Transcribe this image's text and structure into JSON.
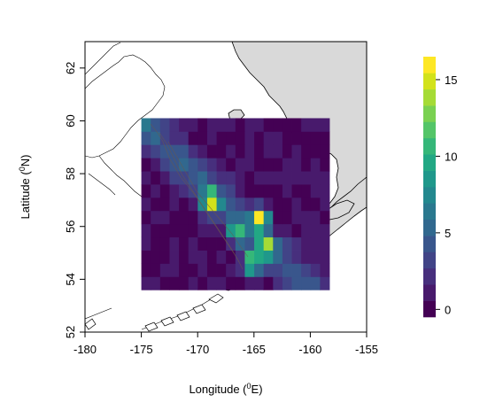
{
  "chart_data": {
    "type": "heatmap",
    "xlabel": "Longitude",
    "xlabel_sup": "0",
    "xlabel_unit": "E",
    "ylabel": "Latitude",
    "ylabel_sup": "0",
    "ylabel_unit": "N",
    "xlim": [
      -180,
      -155
    ],
    "ylim": [
      52,
      63
    ],
    "x_ticks": [
      -180,
      -175,
      -170,
      -165,
      -160,
      -155
    ],
    "x_tick_labels": [
      "-180",
      "-175",
      "-170",
      "-165",
      "-160",
      "-155"
    ],
    "y_ticks": [
      52,
      54,
      56,
      58,
      60,
      62
    ],
    "y_tick_labels": [
      "52",
      "54",
      "56",
      "58",
      "60",
      "62"
    ],
    "grid_extent": {
      "lon": [
        -175,
        -158.3
      ],
      "lat": [
        53.6,
        60.1
      ]
    },
    "grid_shape": {
      "rows": 13,
      "cols": 20
    },
    "colorbar": {
      "min": -0.5,
      "max": 16.5,
      "ticks": [
        0,
        5,
        10,
        15
      ],
      "tick_labels": [
        "0",
        "5",
        "10",
        "15"
      ],
      "colors": [
        "#440154",
        "#481a6c",
        "#472f7d",
        "#414487",
        "#39568c",
        "#31688e",
        "#2a788e",
        "#23888e",
        "#1f988b",
        "#22a884",
        "#35b779",
        "#54c568",
        "#7ad151",
        "#a5db36",
        "#d2e21b",
        "#fde725"
      ]
    },
    "land_color": "#d9d9d9",
    "hotspots": [
      {
        "lon": -164.4,
        "lat": 56.3,
        "value": 16
      },
      {
        "lon": -168.9,
        "lat": 57.0,
        "value": 14
      },
      {
        "lon": -165.2,
        "lat": 54.6,
        "value": 13
      },
      {
        "lon": -164.0,
        "lat": 55.2,
        "value": 11
      },
      {
        "lon": -166.5,
        "lat": 55.8,
        "value": 9
      }
    ]
  }
}
